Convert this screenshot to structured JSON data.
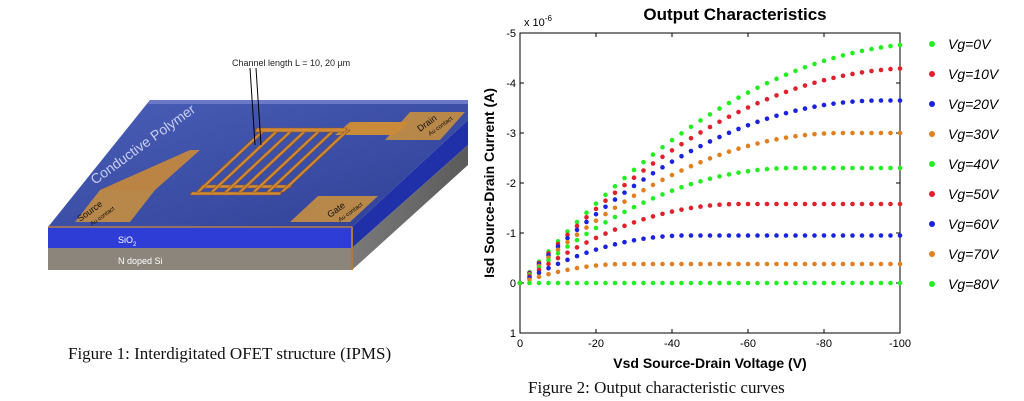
{
  "figure1": {
    "caption": "Figure 1: Interdigitated OFET structure (IPMS)",
    "labels": {
      "channel": "Channel length L = 10, 20 µm",
      "polymer": "Conductive Polymer",
      "source": "Source",
      "source_contact": "Au contact",
      "drain": "Drain",
      "drain_contact": "Au contact",
      "gate": "Gate",
      "gate_contact": "Au contact",
      "sio2": "SiO",
      "sio2_sub": "2",
      "si": "N doped Si"
    },
    "colors": {
      "substrate": "#7f7a72",
      "oxide": "#2a3bd0",
      "polymer": "#3b4fa8",
      "gold": "#c98a3a"
    }
  },
  "figure2": {
    "caption": "Figure 2: Output characteristic curves",
    "scale_label": "x 10",
    "scale_exp": "-6"
  },
  "chart_data": {
    "type": "scatter",
    "title": "Output Characteristics",
    "xlabel": "Vsd Source-Drain Voltage (V)",
    "ylabel": "Isd Source-Drain Current (A)",
    "xlim": [
      0,
      -100
    ],
    "ylim": [
      1,
      -5
    ],
    "xticks": [
      0,
      -20,
      -40,
      -60,
      -80,
      -100
    ],
    "yticks": [
      -5,
      -4,
      -3,
      -2,
      -1,
      0,
      1
    ],
    "xtick_labels": [
      "0",
      "-20",
      "-40",
      "-60",
      "-80",
      "-100"
    ],
    "ytick_labels": [
      "-5",
      "-4",
      "-3",
      "-2",
      "-1",
      "0",
      "1"
    ],
    "y_scale": "1e-6",
    "x_step": 2.5,
    "series": [
      {
        "name": "Vg=0V",
        "color": "#22ee22",
        "saturation": -4.8,
        "vsat": 110
      },
      {
        "name": "Vg=10V",
        "color": "#e0202a",
        "saturation": -4.3,
        "vsat": 105
      },
      {
        "name": "Vg=20V",
        "color": "#1a22dd",
        "saturation": -3.65,
        "vsat": 95
      },
      {
        "name": "Vg=30V",
        "color": "#e08020",
        "saturation": -3.0,
        "vsat": 85
      },
      {
        "name": "Vg=40V",
        "color": "#22ee22",
        "saturation": -2.3,
        "vsat": 72
      },
      {
        "name": "Vg=50V",
        "color": "#e0202a",
        "saturation": -1.58,
        "vsat": 58
      },
      {
        "name": "Vg=60V",
        "color": "#1a22dd",
        "saturation": -0.95,
        "vsat": 44
      },
      {
        "name": "Vg=70V",
        "color": "#e08020",
        "saturation": -0.38,
        "vsat": 28
      },
      {
        "name": "Vg=80V",
        "color": "#22ee22",
        "saturation": 0.0,
        "vsat": 10
      }
    ]
  }
}
